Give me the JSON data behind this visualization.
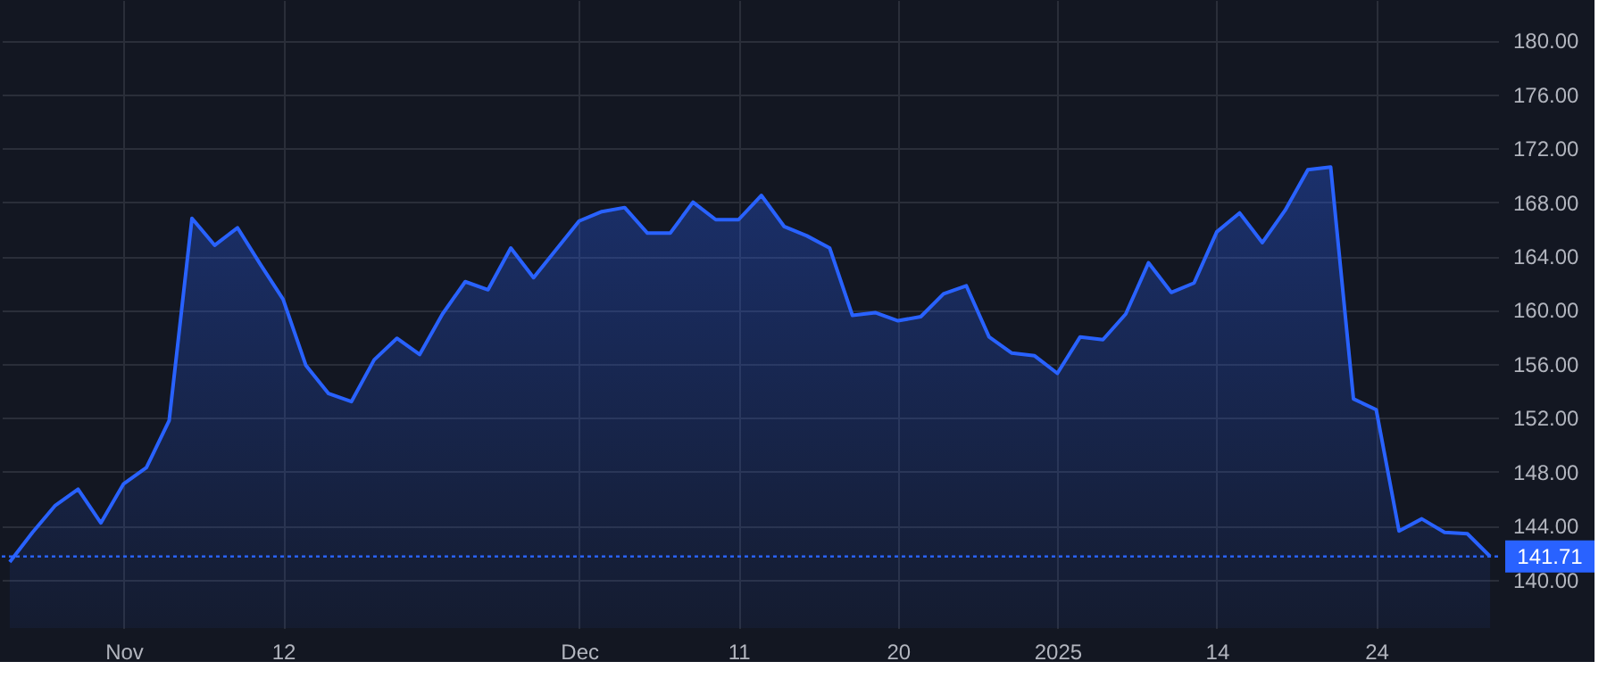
{
  "chart_data": {
    "type": "area",
    "categories": [
      null,
      null,
      null,
      null,
      null,
      "Nov",
      null,
      null,
      null,
      null,
      null,
      null,
      "12",
      null,
      null,
      null,
      null,
      null,
      null,
      null,
      null,
      null,
      null,
      null,
      null,
      "Dec",
      null,
      null,
      null,
      null,
      null,
      null,
      "11",
      null,
      null,
      null,
      null,
      null,
      null,
      "20",
      null,
      null,
      null,
      null,
      null,
      null,
      "2025",
      null,
      null,
      null,
      null,
      null,
      null,
      "14",
      null,
      null,
      null,
      null,
      null,
      null,
      "24",
      null,
      null,
      null,
      null,
      null
    ],
    "series": [
      {
        "color": "#2962ff",
        "values": [
          141.3,
          143.5,
          145.5,
          146.7,
          144.2,
          147.1,
          148.3,
          151.8,
          166.8,
          164.8,
          166.1,
          163.4,
          160.8,
          155.9,
          153.8,
          153.2,
          156.3,
          157.9,
          156.7,
          159.7,
          162.1,
          161.5,
          164.6,
          162.4,
          164.5,
          166.6,
          167.3,
          167.6,
          165.7,
          165.7,
          168.0,
          166.7,
          166.7,
          168.5,
          166.2,
          165.5,
          164.6,
          159.6,
          159.8,
          159.2,
          159.5,
          161.2,
          161.8,
          158.0,
          156.8,
          156.6,
          155.3,
          158.0,
          157.8,
          159.7,
          163.5,
          161.3,
          162.0,
          165.8,
          167.2,
          165.0,
          167.4,
          170.4,
          170.6,
          153.4,
          152.6,
          143.6,
          144.5,
          143.5,
          143.4,
          141.71
        ]
      }
    ],
    "ylim": [
      136.4,
      183.0
    ],
    "yticks": [
      {
        "value": 140,
        "label": "140.00"
      },
      {
        "value": 144,
        "label": "144.00"
      },
      {
        "value": 148,
        "label": "148.00"
      },
      {
        "value": 152,
        "label": "152.00"
      },
      {
        "value": 156,
        "label": "156.00"
      },
      {
        "value": 160,
        "label": "160.00"
      },
      {
        "value": 164,
        "label": "164.00"
      },
      {
        "value": 168,
        "label": "168.00"
      },
      {
        "value": 172,
        "label": "172.00"
      },
      {
        "value": 176,
        "label": "176.00"
      },
      {
        "value": 180,
        "label": "180.00"
      }
    ],
    "ref_lines": [
      {
        "axis": "y",
        "value": 141.71,
        "label": "141.71",
        "color": "#2962ff",
        "line_style": "dotted"
      }
    ],
    "grid": true,
    "marker": "none",
    "line_style": "solid"
  }
}
